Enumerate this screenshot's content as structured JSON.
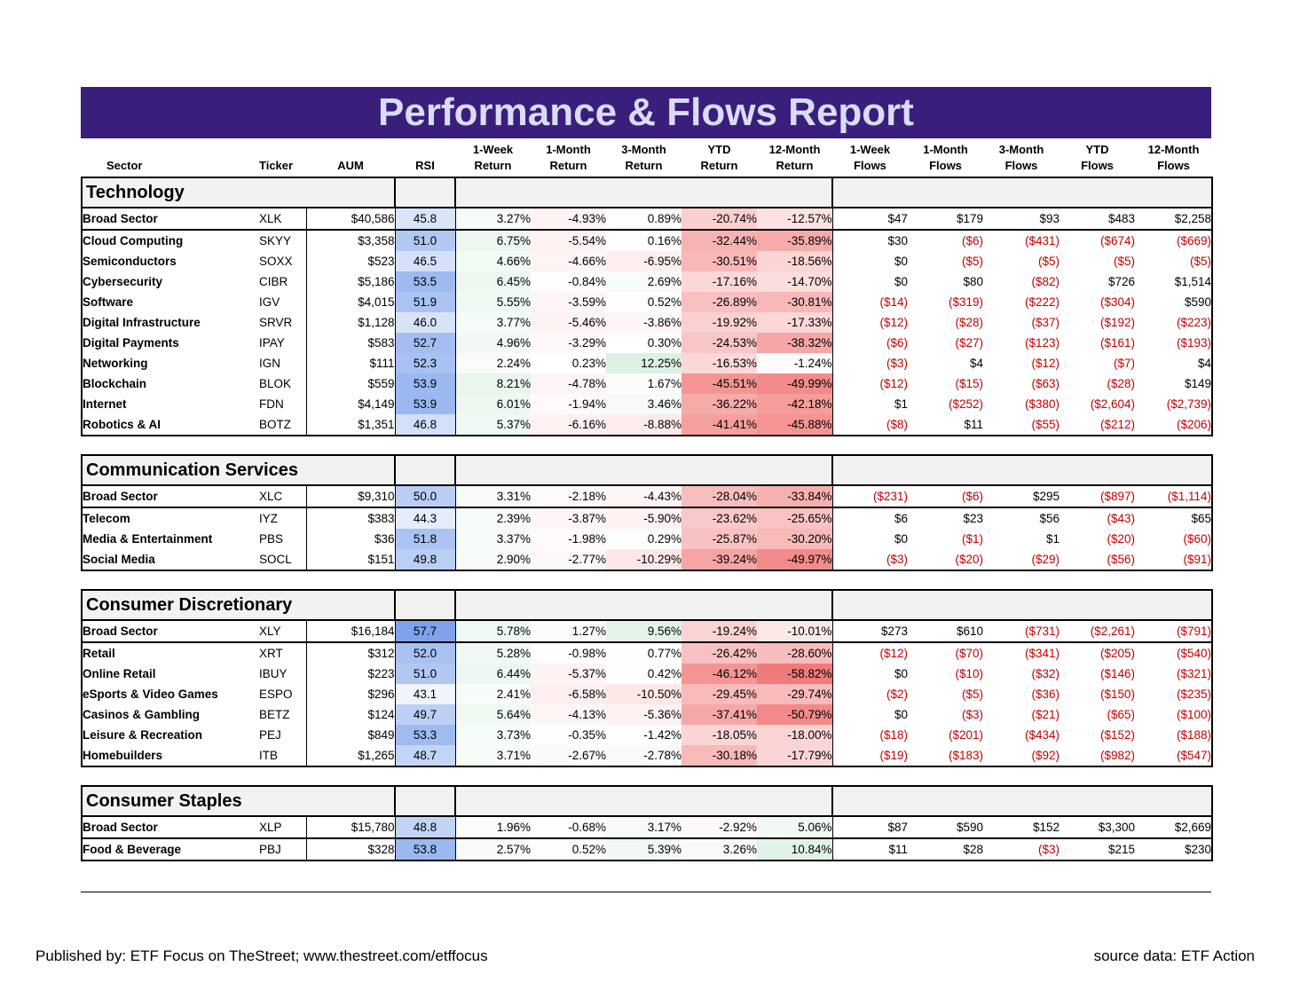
{
  "title": "Performance & Flows Report",
  "headers": {
    "sector": "Sector",
    "ticker": "Ticker",
    "aum": "AUM",
    "rsi": "RSI",
    "r1w": [
      "1-Week",
      "Return"
    ],
    "r1m": [
      "1-Month",
      "Return"
    ],
    "r3m": [
      "3-Month",
      "Return"
    ],
    "rytd": [
      "YTD",
      "Return"
    ],
    "r12m": [
      "12-Month",
      "Return"
    ],
    "f1w": [
      "1-Week",
      "Flows"
    ],
    "f1m": [
      "1-Month",
      "Flows"
    ],
    "f3m": [
      "3-Month",
      "Flows"
    ],
    "fytd": [
      "YTD",
      "Flows"
    ],
    "f12m": [
      "12-Month",
      "Flows"
    ]
  },
  "sections": [
    {
      "name": "Technology",
      "rows": [
        {
          "sector": "Broad Sector",
          "ticker": "XLK",
          "aum": "$40,586",
          "rsi": "45.8",
          "r1w": "3.27%",
          "r1m": "-4.93%",
          "r3m": "0.89%",
          "rytd": "-20.74%",
          "r12m": "-12.57%",
          "f1w": "$47",
          "f1m": "$179",
          "f3m": "$93",
          "fytd": "$483",
          "f12m": "$2,258"
        },
        {
          "sector": "Cloud Computing",
          "ticker": "SKYY",
          "aum": "$3,358",
          "rsi": "51.0",
          "r1w": "6.75%",
          "r1m": "-5.54%",
          "r3m": "0.16%",
          "rytd": "-32.44%",
          "r12m": "-35.89%",
          "f1w": "$30",
          "f1m": "($6)",
          "f3m": "($431)",
          "fytd": "($674)",
          "f12m": "($669)"
        },
        {
          "sector": "Semiconductors",
          "ticker": "SOXX",
          "aum": "$523",
          "rsi": "46.5",
          "r1w": "4.66%",
          "r1m": "-4.66%",
          "r3m": "-6.95%",
          "rytd": "-30.51%",
          "r12m": "-18.56%",
          "f1w": "$0",
          "f1m": "($5)",
          "f3m": "($5)",
          "fytd": "($5)",
          "f12m": "($5)"
        },
        {
          "sector": "Cybersecurity",
          "ticker": "CIBR",
          "aum": "$5,186",
          "rsi": "53.5",
          "r1w": "6.45%",
          "r1m": "-0.84%",
          "r3m": "2.69%",
          "rytd": "-17.16%",
          "r12m": "-14.70%",
          "f1w": "$0",
          "f1m": "$80",
          "f3m": "($82)",
          "fytd": "$726",
          "f12m": "$1,514"
        },
        {
          "sector": "Software",
          "ticker": "IGV",
          "aum": "$4,015",
          "rsi": "51.9",
          "r1w": "5.55%",
          "r1m": "-3.59%",
          "r3m": "0.52%",
          "rytd": "-26.89%",
          "r12m": "-30.81%",
          "f1w": "($14)",
          "f1m": "($319)",
          "f3m": "($222)",
          "fytd": "($304)",
          "f12m": "$590"
        },
        {
          "sector": "Digital Infrastructure",
          "ticker": "SRVR",
          "aum": "$1,128",
          "rsi": "46.0",
          "r1w": "3.77%",
          "r1m": "-5.46%",
          "r3m": "-3.86%",
          "rytd": "-19.92%",
          "r12m": "-17.33%",
          "f1w": "($12)",
          "f1m": "($28)",
          "f3m": "($37)",
          "fytd": "($192)",
          "f12m": "($223)"
        },
        {
          "sector": "Digital Payments",
          "ticker": "IPAY",
          "aum": "$583",
          "rsi": "52.7",
          "r1w": "4.96%",
          "r1m": "-3.29%",
          "r3m": "0.30%",
          "rytd": "-24.53%",
          "r12m": "-38.32%",
          "f1w": "($6)",
          "f1m": "($27)",
          "f3m": "($123)",
          "fytd": "($161)",
          "f12m": "($193)"
        },
        {
          "sector": "Networking",
          "ticker": "IGN",
          "aum": "$111",
          "rsi": "52.3",
          "r1w": "2.24%",
          "r1m": "0.23%",
          "r3m": "12.25%",
          "rytd": "-16.53%",
          "r12m": "-1.24%",
          "f1w": "($3)",
          "f1m": "$4",
          "f3m": "($12)",
          "fytd": "($7)",
          "f12m": "$4"
        },
        {
          "sector": "Blockchain",
          "ticker": "BLOK",
          "aum": "$559",
          "rsi": "53.9",
          "r1w": "8.21%",
          "r1m": "-4.78%",
          "r3m": "1.67%",
          "rytd": "-45.51%",
          "r12m": "-49.99%",
          "f1w": "($12)",
          "f1m": "($15)",
          "f3m": "($63)",
          "fytd": "($28)",
          "f12m": "$149"
        },
        {
          "sector": "Internet",
          "ticker": "FDN",
          "aum": "$4,149",
          "rsi": "53.9",
          "r1w": "6.01%",
          "r1m": "-1.94%",
          "r3m": "3.46%",
          "rytd": "-36.22%",
          "r12m": "-42.18%",
          "f1w": "$1",
          "f1m": "($252)",
          "f3m": "($380)",
          "fytd": "($2,604)",
          "f12m": "($2,739)"
        },
        {
          "sector": "Robotics & AI",
          "ticker": "BOTZ",
          "aum": "$1,351",
          "rsi": "46.8",
          "r1w": "5.37%",
          "r1m": "-6.16%",
          "r3m": "-8.88%",
          "rytd": "-41.41%",
          "r12m": "-45.88%",
          "f1w": "($8)",
          "f1m": "$11",
          "f3m": "($55)",
          "fytd": "($212)",
          "f12m": "($206)"
        }
      ]
    },
    {
      "name": "Communication Services",
      "rows": [
        {
          "sector": "Broad Sector",
          "ticker": "XLC",
          "aum": "$9,310",
          "rsi": "50.0",
          "r1w": "3.31%",
          "r1m": "-2.18%",
          "r3m": "-4.43%",
          "rytd": "-28.04%",
          "r12m": "-33.84%",
          "f1w": "($231)",
          "f1m": "($6)",
          "f3m": "$295",
          "fytd": "($897)",
          "f12m": "($1,114)"
        },
        {
          "sector": "Telecom",
          "ticker": "IYZ",
          "aum": "$383",
          "rsi": "44.3",
          "r1w": "2.39%",
          "r1m": "-3.87%",
          "r3m": "-5.90%",
          "rytd": "-23.62%",
          "r12m": "-25.65%",
          "f1w": "$6",
          "f1m": "$23",
          "f3m": "$56",
          "fytd": "($43)",
          "f12m": "$65"
        },
        {
          "sector": "Media & Entertainment",
          "ticker": "PBS",
          "aum": "$36",
          "rsi": "51.8",
          "r1w": "3.37%",
          "r1m": "-1.98%",
          "r3m": "0.29%",
          "rytd": "-25.87%",
          "r12m": "-30.20%",
          "f1w": "$0",
          "f1m": "($1)",
          "f3m": "$1",
          "fytd": "($20)",
          "f12m": "($60)"
        },
        {
          "sector": "Social Media",
          "ticker": "SOCL",
          "aum": "$151",
          "rsi": "49.8",
          "r1w": "2.90%",
          "r1m": "-2.77%",
          "r3m": "-10.29%",
          "rytd": "-39.24%",
          "r12m": "-49.97%",
          "f1w": "($3)",
          "f1m": "($20)",
          "f3m": "($29)",
          "fytd": "($56)",
          "f12m": "($91)"
        }
      ]
    },
    {
      "name": "Consumer Discretionary",
      "rows": [
        {
          "sector": "Broad Sector",
          "ticker": "XLY",
          "aum": "$16,184",
          "rsi": "57.7",
          "r1w": "5.78%",
          "r1m": "1.27%",
          "r3m": "9.56%",
          "rytd": "-19.24%",
          "r12m": "-10.01%",
          "f1w": "$273",
          "f1m": "$610",
          "f3m": "($731)",
          "fytd": "($2,261)",
          "f12m": "($791)"
        },
        {
          "sector": "Retail",
          "ticker": "XRT",
          "aum": "$312",
          "rsi": "52.0",
          "r1w": "5.28%",
          "r1m": "-0.98%",
          "r3m": "0.77%",
          "rytd": "-26.42%",
          "r12m": "-28.60%",
          "f1w": "($12)",
          "f1m": "($70)",
          "f3m": "($341)",
          "fytd": "($205)",
          "f12m": "($540)"
        },
        {
          "sector": "Online Retail",
          "ticker": "IBUY",
          "aum": "$223",
          "rsi": "51.0",
          "r1w": "6.44%",
          "r1m": "-5.37%",
          "r3m": "0.42%",
          "rytd": "-46.12%",
          "r12m": "-58.82%",
          "f1w": "$0",
          "f1m": "($10)",
          "f3m": "($32)",
          "fytd": "($146)",
          "f12m": "($321)"
        },
        {
          "sector": "eSports & Video Games",
          "ticker": "ESPO",
          "aum": "$296",
          "rsi": "43.1",
          "r1w": "2.41%",
          "r1m": "-6.58%",
          "r3m": "-10.50%",
          "rytd": "-29.45%",
          "r12m": "-29.74%",
          "f1w": "($2)",
          "f1m": "($5)",
          "f3m": "($36)",
          "fytd": "($150)",
          "f12m": "($235)"
        },
        {
          "sector": "Casinos & Gambling",
          "ticker": "BETZ",
          "aum": "$124",
          "rsi": "49.7",
          "r1w": "5.64%",
          "r1m": "-4.13%",
          "r3m": "-5.36%",
          "rytd": "-37.41%",
          "r12m": "-50.79%",
          "f1w": "$0",
          "f1m": "($3)",
          "f3m": "($21)",
          "fytd": "($65)",
          "f12m": "($100)"
        },
        {
          "sector": "Leisure & Recreation",
          "ticker": "PEJ",
          "aum": "$849",
          "rsi": "53.3",
          "r1w": "3.73%",
          "r1m": "-0.35%",
          "r3m": "-1.42%",
          "rytd": "-18.05%",
          "r12m": "-18.00%",
          "f1w": "($18)",
          "f1m": "($201)",
          "f3m": "($434)",
          "fytd": "($152)",
          "f12m": "($188)"
        },
        {
          "sector": "Homebuilders",
          "ticker": "ITB",
          "aum": "$1,265",
          "rsi": "48.7",
          "r1w": "3.71%",
          "r1m": "-2.67%",
          "r3m": "-2.78%",
          "rytd": "-30.18%",
          "r12m": "-17.79%",
          "f1w": "($19)",
          "f1m": "($183)",
          "f3m": "($92)",
          "fytd": "($982)",
          "f12m": "($547)"
        }
      ]
    },
    {
      "name": "Consumer Staples",
      "rows": [
        {
          "sector": "Broad Sector",
          "ticker": "XLP",
          "aum": "$15,780",
          "rsi": "48.8",
          "r1w": "1.96%",
          "r1m": "-0.68%",
          "r3m": "3.17%",
          "rytd": "-2.92%",
          "r12m": "5.06%",
          "f1w": "$87",
          "f1m": "$590",
          "f3m": "$152",
          "fytd": "$3,300",
          "f12m": "$2,669"
        },
        {
          "sector": "Food & Beverage",
          "ticker": "PBJ",
          "aum": "$328",
          "rsi": "53.8",
          "r1w": "2.57%",
          "r1m": "0.52%",
          "r3m": "5.39%",
          "rytd": "3.26%",
          "r12m": "10.84%",
          "f1w": "$11",
          "f1m": "$28",
          "f3m": "($3)",
          "fytd": "$215",
          "f12m": "$230"
        }
      ]
    }
  ],
  "colors": {
    "title_bg": "#3a1e7c",
    "title_text": "#d9dcf5",
    "negative_flow": "#c00000",
    "return_negative_heat": "#f06c6c",
    "return_positive_heat": "#63be7b",
    "rsi_heat": "#5a8ae6",
    "section_band": "#f2f2f2"
  },
  "footer": {
    "published": "Published by: ETF Focus on TheStreet; www.thestreet.com/etffocus",
    "source": "source data: ETF Action"
  }
}
